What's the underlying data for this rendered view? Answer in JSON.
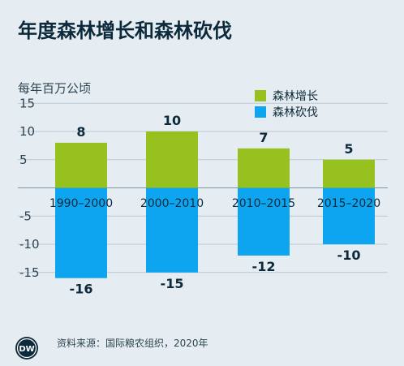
{
  "title": "年度森林增长和森林砍伐",
  "source": "资料来源：国际粮农组织，2020年",
  "logo_text": "DW",
  "chart_data": {
    "type": "bar",
    "ylabel": "每年百万公顷",
    "categories": [
      "1990–2000",
      "2000–2010",
      "2010–2015",
      "2015–2020"
    ],
    "series": [
      {
        "name": "森林增长",
        "values": [
          8,
          10,
          7,
          5
        ],
        "color": "#96c11f",
        "data_labels": [
          "8",
          "10",
          "7",
          "5"
        ]
      },
      {
        "name": "森林砍伐",
        "values": [
          -16,
          -15,
          -12,
          -10
        ],
        "color": "#0ea5f0",
        "data_labels": [
          "-16",
          "-15",
          "-12",
          "-10"
        ]
      }
    ],
    "ylim": [
      -17,
      16
    ],
    "yticks": [
      15,
      10,
      5,
      -5,
      -10,
      -15
    ],
    "ytick_labels": [
      "15",
      "10",
      "5",
      "-5",
      "-10",
      "-15"
    ],
    "grid": true,
    "legend_position": "top-right",
    "colors": {
      "background": "#e6edf2",
      "grid": "#b8c8d3",
      "text": "#0c2a3b"
    }
  }
}
